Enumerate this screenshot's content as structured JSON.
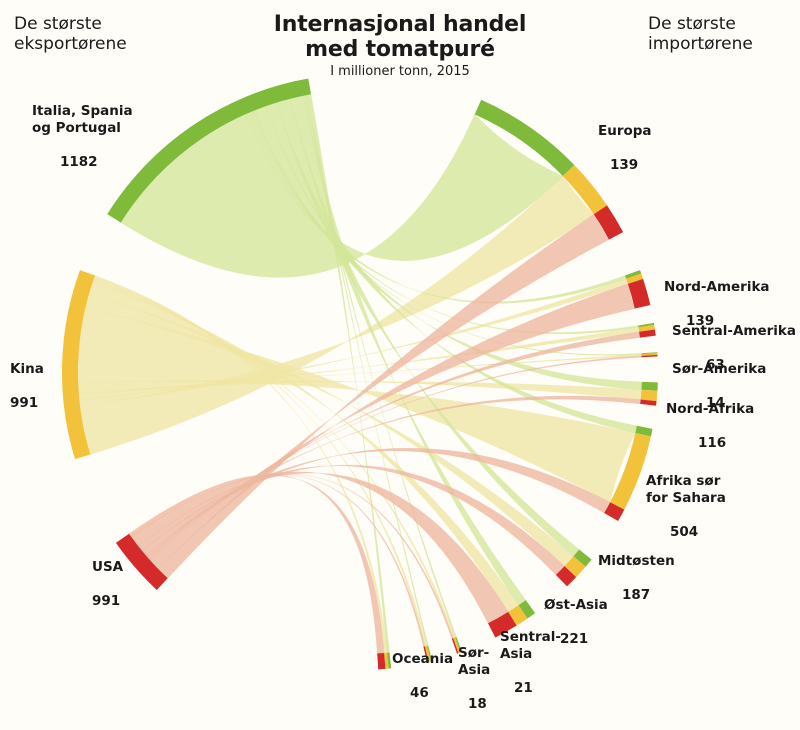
{
  "title": "Internasjonal handel\nmed tomatpuré",
  "subtitle": "I millioner tonn, 2015",
  "exporters_heading": "De største\neksportørene",
  "importers_heading": "De største\nimportørene",
  "colors": {
    "europe": "#7fba3a",
    "europe_ribbon": "#d4e69a",
    "china": "#f2c23a",
    "china_ribbon": "#efe6a4",
    "usa": "#d42a2a",
    "usa_ribbon": "#eeb8a0",
    "background": "#fffdf8"
  },
  "chart_data": {
    "type": "chord",
    "unit": "I millioner tonn",
    "exporters": [
      {
        "name": "Italia, Spania\nog Portugal",
        "value": "1182",
        "color_key": "europe"
      },
      {
        "name": "Kina",
        "value": "991",
        "color_key": "china"
      },
      {
        "name": "USA",
        "value": "991",
        "color_key": "usa"
      }
    ],
    "importers": [
      {
        "name": "Europa",
        "value": "139"
      },
      {
        "name": "Nord-Amerika",
        "value": "139"
      },
      {
        "name": "Sentral-Amerika",
        "value": "63"
      },
      {
        "name": "Sør-Amerika",
        "value": "14"
      },
      {
        "name": "Nord-Afrika",
        "value": "116"
      },
      {
        "name": "Afrika sør\nfor Sahara",
        "value": "504"
      },
      {
        "name": "Midtøsten",
        "value": "187"
      },
      {
        "name": "Øst-Asia",
        "value": "221"
      },
      {
        "name": "Sentral-\nAsia",
        "value": "21"
      },
      {
        "name": "Sør-\nAsia",
        "value": "18"
      },
      {
        "name": "Oceania",
        "value": "46"
      }
    ]
  }
}
